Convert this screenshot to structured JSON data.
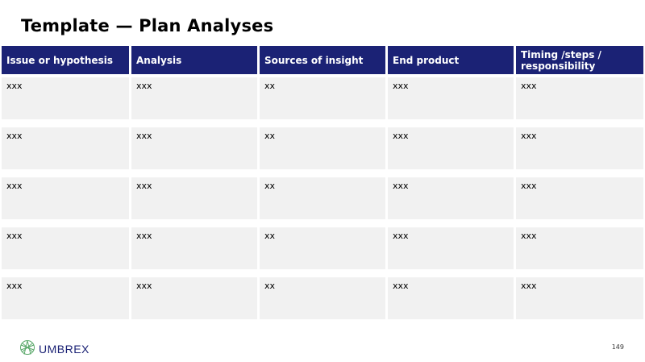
{
  "title": "Template — Plan Analyses",
  "columns": [
    "Issue or hypothesis",
    "Analysis",
    "Sources of insight",
    "End product",
    "Timing /steps / responsibility"
  ],
  "rows": [
    [
      "xxx",
      "xxx",
      "xx",
      "xxx",
      "xxx"
    ],
    [
      "xxx",
      "xxx",
      "xx",
      "xxx",
      "xxx"
    ],
    [
      "xxx",
      "xxx",
      "xx",
      "xxx",
      "xxx"
    ],
    [
      "xxx",
      "xxx",
      "xx",
      "xxx",
      "xxx"
    ],
    [
      "xxx",
      "xxx",
      "xx",
      "xxx",
      "xxx"
    ]
  ],
  "footer": {
    "logo_text": "UMBREX",
    "logo_icon": "globe-icon",
    "page_number": "149"
  },
  "colors": {
    "header_bg": "#1b2275",
    "cell_bg": "#f1f1f1",
    "logo_green": "#5aa86a"
  }
}
